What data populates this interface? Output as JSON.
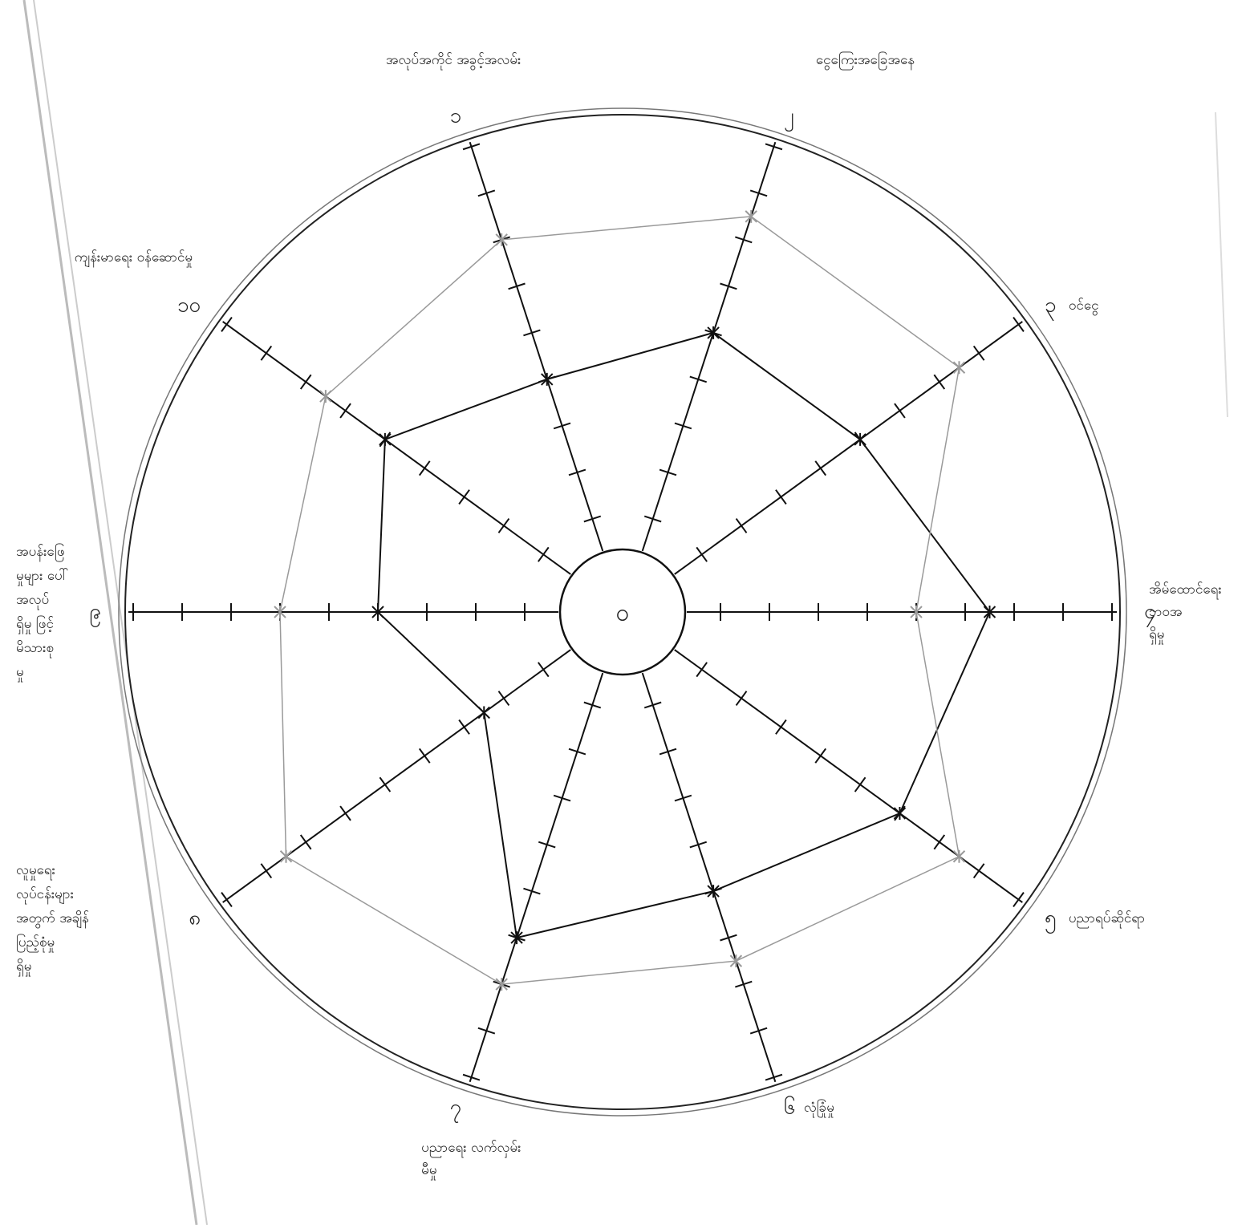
{
  "chart_data": {
    "type": "radar",
    "categories": [
      "၁",
      "၂",
      "၃",
      "၄",
      "၅",
      "၆",
      "၇",
      "၈",
      "၉",
      "၁၀"
    ],
    "axis_notes": [
      [
        "အလုပ်အကိုင် အခွင့်အလမ်း"
      ],
      [
        "ငွေကြေးအခြေအနေ"
      ],
      [
        "ဝင်ငွေ"
      ],
      [
        "အိမ်ထောင်ရေး",
        "ဘဝအ",
        "ရှိမှု"
      ],
      [
        "ပညာရပ်ဆိုင်ရာ"
      ],
      [
        "လုံခြုံမှု"
      ],
      [
        "ပညာရေး လက်လှမ်း",
        "မီမှု"
      ],
      [
        "လူမှုရေး",
        "လုပ်ငန်းများ",
        "အတွက် အချိန်",
        "ပြည့်စုံမှု",
        "ရှိမှု"
      ],
      [
        "အပန်းဖြေ",
        "မှုများ ပေါ်",
        "အလုပ်",
        "ရှိမှု ဖြင့်",
        "မိသားစု",
        "မှု"
      ],
      [
        "ကျန်းမာရေး ဝန်ဆောင်မှု"
      ]
    ],
    "center_label": "၀",
    "rlim": [
      0,
      10
    ],
    "rticks": [
      1,
      2,
      3,
      4,
      5,
      6,
      7,
      8,
      9,
      10
    ],
    "series": [
      {
        "color": "#111111",
        "values": [
          5,
          6,
          6,
          7.5,
          7,
          6,
          7,
          3.5,
          5,
          6
        ]
      },
      {
        "color": "#9a9a9a",
        "values": [
          8,
          8.5,
          8.5,
          6,
          8.5,
          7.5,
          8,
          8.5,
          7,
          7.5
        ]
      }
    ]
  }
}
